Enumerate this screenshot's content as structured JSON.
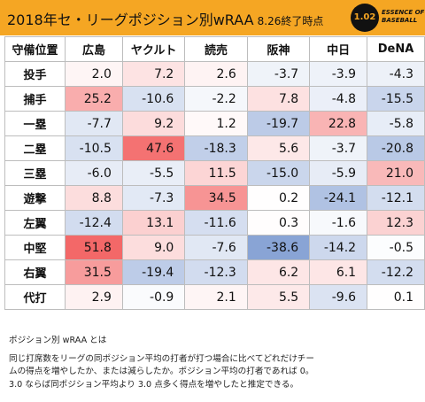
{
  "header": {
    "title": "2018年セ・リーグポジション別wRAA",
    "subtitle": "8.26終了時点",
    "logo_number": "1.02",
    "logo_text_1": "ESSENCE OF",
    "logo_text_2": "BASEBALL"
  },
  "table": {
    "corner": "守備位置",
    "columns": [
      "広島",
      "ヤクルト",
      "読売",
      "阪神",
      "中日",
      "DeNA"
    ],
    "rows": [
      {
        "pos": "投手",
        "values": [
          2.0,
          7.2,
          2.6,
          -3.7,
          -3.9,
          -4.3
        ]
      },
      {
        "pos": "捕手",
        "values": [
          25.2,
          -10.6,
          -2.2,
          7.8,
          -4.8,
          -15.5
        ]
      },
      {
        "pos": "一塁",
        "values": [
          -7.7,
          9.2,
          1.2,
          -19.7,
          22.8,
          -5.8
        ]
      },
      {
        "pos": "二塁",
        "values": [
          -10.5,
          47.6,
          -18.3,
          5.6,
          -3.7,
          -20.8
        ]
      },
      {
        "pos": "三塁",
        "values": [
          -6.0,
          -5.5,
          11.5,
          -15.0,
          -5.9,
          21.0
        ]
      },
      {
        "pos": "遊撃",
        "values": [
          8.8,
          -7.3,
          34.5,
          0.2,
          -24.1,
          -12.1
        ]
      },
      {
        "pos": "左翼",
        "values": [
          -12.4,
          13.1,
          -11.6,
          0.3,
          -1.6,
          12.3
        ]
      },
      {
        "pos": "中堅",
        "values": [
          51.8,
          9.0,
          -7.6,
          -38.6,
          -14.2,
          -0.5
        ]
      },
      {
        "pos": "右翼",
        "values": [
          31.5,
          -19.4,
          -12.3,
          6.2,
          6.1,
          -12.2
        ]
      },
      {
        "pos": "代打",
        "values": [
          2.9,
          -0.9,
          2.1,
          5.5,
          -9.6,
          0.1
        ]
      }
    ]
  },
  "note": {
    "heading": "ポジション別 wRAA とは",
    "line1": "同じ打席数をリーグの同ポジション平均の打者が打つ場合に比べてどれだけチー",
    "line2": "ムの得点を増やしたか、または減らしたか。ポジション平均の打者であれば 0。",
    "line3": "3.0 ならば同ポジション平均より 3.0 点多く得点を増やしたと推定できる。"
  },
  "colors": {
    "header_bg": "#f5a623",
    "positive": "#f25a5a",
    "negative": "#5a7fc4"
  }
}
